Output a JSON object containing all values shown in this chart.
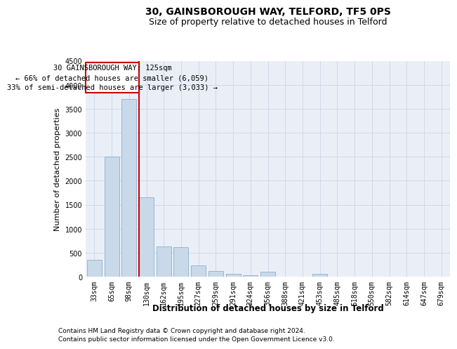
{
  "title1": "30, GAINSBOROUGH WAY, TELFORD, TF5 0PS",
  "title2": "Size of property relative to detached houses in Telford",
  "xlabel": "Distribution of detached houses by size in Telford",
  "ylabel": "Number of detached properties",
  "categories": [
    "33sqm",
    "65sqm",
    "98sqm",
    "130sqm",
    "162sqm",
    "195sqm",
    "227sqm",
    "259sqm",
    "291sqm",
    "324sqm",
    "356sqm",
    "388sqm",
    "421sqm",
    "453sqm",
    "485sqm",
    "518sqm",
    "550sqm",
    "582sqm",
    "614sqm",
    "647sqm",
    "679sqm"
  ],
  "values": [
    350,
    2500,
    3700,
    1650,
    625,
    615,
    240,
    115,
    60,
    35,
    100,
    0,
    0,
    60,
    0,
    0,
    0,
    0,
    0,
    0,
    0
  ],
  "bar_color": "#c9d9ea",
  "bar_edge_color": "#8ab0cc",
  "red_line_x": 3,
  "red_line_color": "#cc0000",
  "annotation_box_color": "#cc0000",
  "annotation_lines": [
    "30 GAINSBOROUGH WAY: 125sqm",
    "← 66% of detached houses are smaller (6,059)",
    "33% of semi-detached houses are larger (3,033) →"
  ],
  "ylim": [
    0,
    4500
  ],
  "yticks": [
    0,
    500,
    1000,
    1500,
    2000,
    2500,
    3000,
    3500,
    4000,
    4500
  ],
  "grid_color": "#d0d8e8",
  "bg_color": "#eaeff7",
  "footer_line1": "Contains HM Land Registry data © Crown copyright and database right 2024.",
  "footer_line2": "Contains public sector information licensed under the Open Government Licence v3.0.",
  "title1_fontsize": 10,
  "title2_fontsize": 9,
  "xlabel_fontsize": 8.5,
  "ylabel_fontsize": 8,
  "tick_fontsize": 7,
  "annotation_fontsize": 7.5,
  "footer_fontsize": 6.5
}
